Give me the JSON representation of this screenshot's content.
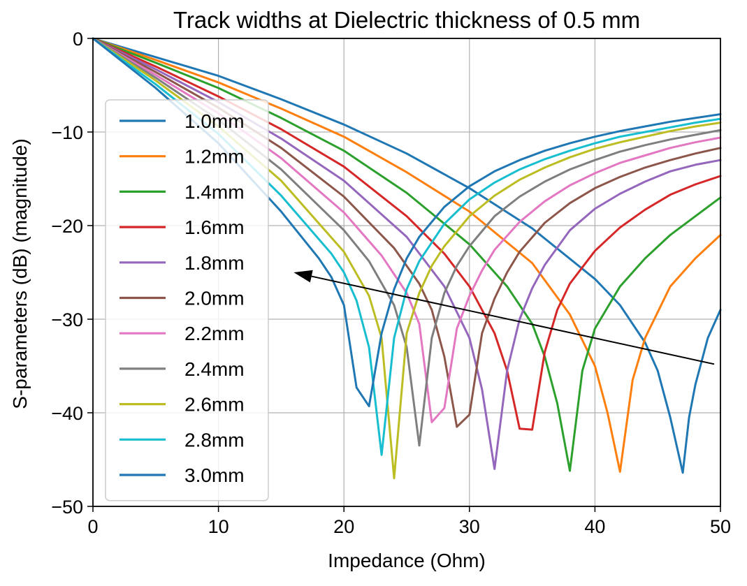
{
  "chart_data": {
    "type": "line",
    "title": "Track widths at Dielectric thickness of 0.5 mm",
    "xlabel": "Impedance (Ohm)",
    "ylabel": "S-parameters (dB) (magnitude)",
    "xlim": [
      0,
      50
    ],
    "ylim": [
      -50,
      0
    ],
    "xticks": [
      "0",
      "10",
      "20",
      "30",
      "40",
      "50"
    ],
    "yticks": [
      "0",
      "−10",
      "−20",
      "−30",
      "−40",
      "−50"
    ],
    "grid": true,
    "legend_position": "left",
    "annotation": {
      "type": "arrow",
      "from": [
        49.5,
        -34.8
      ],
      "to": [
        16,
        -25
      ]
    },
    "series": [
      {
        "name": "1.0mm",
        "color": "#1f77b4",
        "x": [
          0,
          5,
          10,
          15,
          20,
          25,
          30,
          35,
          40,
          42,
          44,
          45,
          46,
          47,
          47.5,
          48,
          49,
          50
        ],
        "y": [
          0,
          -2,
          -4,
          -6.5,
          -9.2,
          -12.3,
          -16,
          -20.3,
          -25.7,
          -28.5,
          -32.5,
          -35.5,
          -40.5,
          -46.4,
          -40.5,
          -37,
          -32,
          -29
        ]
      },
      {
        "name": "1.2mm",
        "color": "#ff7f0e",
        "x": [
          0,
          5,
          10,
          15,
          20,
          25,
          30,
          35,
          38,
          40,
          41,
          42,
          43,
          44,
          46,
          48,
          50
        ],
        "y": [
          0,
          -2.3,
          -4.7,
          -7.5,
          -10.5,
          -14.3,
          -18.5,
          -24,
          -29.5,
          -35,
          -40,
          -46.3,
          -36.5,
          -32,
          -26.5,
          -23.5,
          -21
        ]
      },
      {
        "name": "1.4mm",
        "color": "#2ca02c",
        "x": [
          0,
          5,
          10,
          15,
          20,
          25,
          30,
          33,
          35,
          36,
          37,
          38,
          39,
          40,
          42,
          44,
          46,
          48,
          50
        ],
        "y": [
          0,
          -2.6,
          -5.3,
          -8.5,
          -12,
          -16.5,
          -22,
          -26.5,
          -30.5,
          -34,
          -39,
          -46.2,
          -35.5,
          -31,
          -26.5,
          -23.5,
          -21,
          -19,
          -17
        ]
      },
      {
        "name": "1.6mm",
        "color": "#d62728",
        "x": [
          0,
          5,
          10,
          15,
          20,
          25,
          28,
          30,
          32,
          33,
          34,
          35,
          36,
          37,
          38,
          40,
          42,
          44,
          46,
          48,
          50
        ],
        "y": [
          0,
          -3,
          -6.2,
          -9.7,
          -13.7,
          -19,
          -23,
          -26.5,
          -31.5,
          -35.5,
          -41.7,
          -41.8,
          -33.5,
          -29,
          -26.2,
          -22.7,
          -20.2,
          -18.3,
          -16.7,
          -15.6,
          -14.7
        ]
      },
      {
        "name": "1.8mm",
        "color": "#9467bd",
        "x": [
          0,
          5,
          10,
          15,
          20,
          25,
          28,
          30,
          31,
          32,
          33,
          34,
          35,
          36,
          38,
          40,
          42,
          44,
          46,
          48,
          50
        ],
        "y": [
          0,
          -3.3,
          -6.8,
          -10.7,
          -15.2,
          -21.2,
          -26.5,
          -32,
          -37.5,
          -46,
          -35.5,
          -30,
          -26.7,
          -24.2,
          -20.5,
          -18.2,
          -16.6,
          -15.3,
          -14.2,
          -13.5,
          -13
        ]
      },
      {
        "name": "2.0mm",
        "color": "#8c564b",
        "x": [
          0,
          5,
          10,
          15,
          20,
          24,
          26,
          27,
          28,
          29,
          30,
          31,
          32,
          33,
          34,
          36,
          38,
          40,
          42,
          44,
          46,
          48,
          50
        ],
        "y": [
          0,
          -3.6,
          -7.4,
          -11.7,
          -16.9,
          -22.4,
          -26.2,
          -29,
          -34,
          -41.5,
          -40.2,
          -31.5,
          -27.8,
          -25,
          -22.8,
          -19.7,
          -17.6,
          -16,
          -14.8,
          -13.8,
          -13,
          -12.3,
          -11.7
        ]
      },
      {
        "name": "2.2mm",
        "color": "#e377c2",
        "x": [
          0,
          5,
          10,
          15,
          20,
          23,
          25,
          26,
          27,
          28,
          29,
          30,
          31,
          32,
          34,
          36,
          38,
          40,
          42,
          44,
          46,
          48,
          50
        ],
        "y": [
          0,
          -3.9,
          -8,
          -12.8,
          -18.6,
          -23.2,
          -27.2,
          -30.5,
          -41,
          -39.5,
          -31,
          -27.5,
          -24.8,
          -22.6,
          -19.6,
          -17.4,
          -15.7,
          -14.4,
          -13.3,
          -12.5,
          -11.7,
          -11.1,
          -10.6
        ]
      },
      {
        "name": "2.4mm",
        "color": "#7f7f7f",
        "x": [
          0,
          5,
          10,
          15,
          20,
          22,
          24,
          25,
          26,
          27,
          28,
          29,
          30,
          32,
          34,
          36,
          38,
          40,
          42,
          44,
          46,
          48,
          50
        ],
        "y": [
          0,
          -4.2,
          -8.7,
          -14,
          -20.5,
          -23.8,
          -28.5,
          -33,
          -43.5,
          -32,
          -27.2,
          -24.3,
          -22.2,
          -19,
          -16.9,
          -15.3,
          -14,
          -13,
          -12.1,
          -11.4,
          -10.8,
          -10.3,
          -9.8
        ]
      },
      {
        "name": "2.6mm",
        "color": "#bcbd22",
        "x": [
          0,
          5,
          10,
          15,
          20,
          22,
          23,
          24,
          25,
          26,
          27,
          28,
          30,
          32,
          34,
          36,
          38,
          40,
          42,
          44,
          46,
          48,
          50
        ],
        "y": [
          0,
          -4.5,
          -9.4,
          -15.2,
          -22.8,
          -27.5,
          -32,
          -47,
          -31.5,
          -27.2,
          -24.3,
          -22.2,
          -19,
          -16.8,
          -15.1,
          -13.8,
          -12.7,
          -11.8,
          -11.1,
          -10.5,
          -9.9,
          -9.4,
          -9
        ]
      },
      {
        "name": "2.8mm",
        "color": "#17becf",
        "x": [
          0,
          5,
          10,
          15,
          19,
          20,
          21,
          22,
          23,
          24,
          25,
          26,
          28,
          30,
          32,
          34,
          36,
          38,
          40,
          42,
          44,
          46,
          48,
          50
        ],
        "y": [
          0,
          -4.9,
          -10.2,
          -16.8,
          -23,
          -25,
          -28,
          -33,
          -44.5,
          -32,
          -26.8,
          -23.8,
          -19.8,
          -17.2,
          -15.4,
          -14,
          -12.9,
          -12,
          -11.2,
          -10.5,
          -10,
          -9.5,
          -9,
          -8.6
        ]
      },
      {
        "name": "3.0mm",
        "color": "#1f77b4",
        "x": [
          0,
          5,
          10,
          15,
          18,
          19,
          20,
          21,
          22,
          23,
          24,
          25,
          26,
          28,
          30,
          32,
          34,
          36,
          38,
          40,
          42,
          44,
          46,
          48,
          50
        ],
        "y": [
          0,
          -5.3,
          -11.2,
          -18.5,
          -23.5,
          -25.5,
          -28.5,
          -37.3,
          -39.3,
          -31.5,
          -26.8,
          -23.5,
          -21.2,
          -18,
          -15.8,
          -14.2,
          -13,
          -12,
          -11.2,
          -10.5,
          -9.9,
          -9.4,
          -8.9,
          -8.5,
          -8.1
        ]
      }
    ]
  }
}
